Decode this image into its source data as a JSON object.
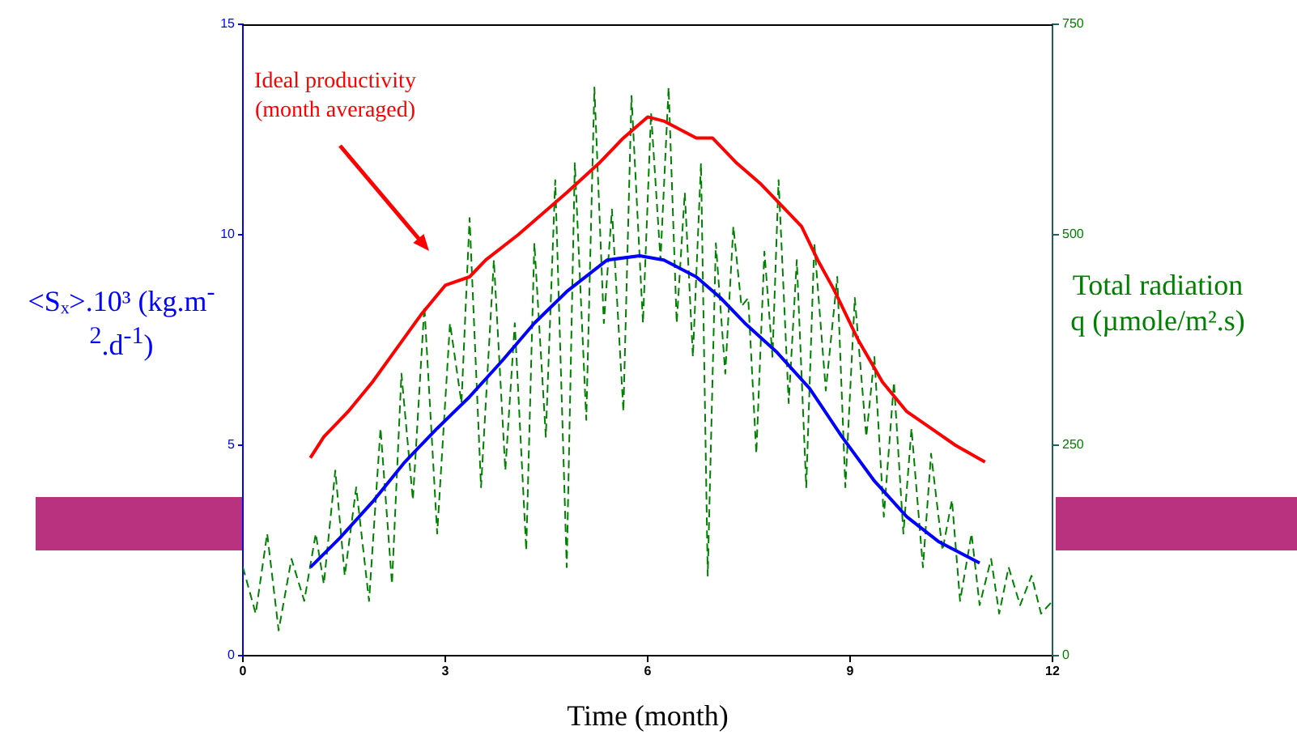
{
  "chart_data": {
    "type": "line",
    "xlabel": "Time (month)",
    "ylabel": "<Sₓ>.10³ (kg.m$^{-2}$.d$^{-1}$)",
    "y2label": "Total radiation q (µmole/m².s)",
    "xlim": [
      0,
      12
    ],
    "xticks": [
      0,
      3,
      6,
      9,
      12
    ],
    "ylim": [
      0,
      15
    ],
    "yticks": [
      0,
      5,
      10,
      15
    ],
    "y2lim": [
      0,
      750
    ],
    "y2ticks": [
      0,
      250,
      500,
      750
    ],
    "grid": false,
    "legend": false,
    "marker": "none",
    "annotations": [
      "Ideal productivity (month averaged)"
    ],
    "series": [
      {
        "color": "#ff0000",
        "line_style": "solid",
        "x": [
          1.0,
          1.2,
          1.56,
          1.92,
          2.28,
          2.64,
          3.0,
          3.36,
          3.6,
          4.08,
          4.44,
          4.8,
          5.28,
          5.64,
          6.0,
          6.24,
          6.72,
          6.96,
          7.32,
          7.68,
          7.92,
          8.28,
          8.52,
          8.76,
          9.12,
          9.48,
          9.84,
          10.2,
          10.56,
          11.0
        ],
        "values": [
          4.7,
          5.2,
          5.8,
          6.5,
          7.3,
          8.1,
          8.8,
          9.0,
          9.4,
          10.0,
          10.5,
          11.0,
          11.7,
          12.3,
          12.8,
          12.7,
          12.3,
          12.3,
          11.7,
          11.2,
          10.8,
          10.2,
          9.4,
          8.7,
          7.5,
          6.5,
          5.8,
          5.4,
          5.0,
          4.6
        ]
      },
      {
        "color": "#0000ff",
        "line_style": "solid",
        "x": [
          1.0,
          1.44,
          1.92,
          2.4,
          2.88,
          3.36,
          3.84,
          4.32,
          4.8,
          5.4,
          5.88,
          6.24,
          6.72,
          7.08,
          7.44,
          7.92,
          8.4,
          8.88,
          9.36,
          9.84,
          10.32,
          10.92
        ],
        "values": [
          2.1,
          2.8,
          3.65,
          4.6,
          5.4,
          6.15,
          7.0,
          7.9,
          8.65,
          9.4,
          9.5,
          9.4,
          9.0,
          8.5,
          7.9,
          7.2,
          6.35,
          5.2,
          4.15,
          3.3,
          2.7,
          2.2
        ]
      },
      {
        "color": "#008000",
        "line_style": "dashed",
        "axis": "y2",
        "x": [
          0,
          0.19,
          0.36,
          0.53,
          0.72,
          0.91,
          1.08,
          1.2,
          1.37,
          1.51,
          1.68,
          1.87,
          2.04,
          2.21,
          2.35,
          2.52,
          2.69,
          2.88,
          3.07,
          3.24,
          3.36,
          3.53,
          3.72,
          3.89,
          4.03,
          4.2,
          4.32,
          4.49,
          4.63,
          4.8,
          4.92,
          5.09,
          5.21,
          5.35,
          5.47,
          5.64,
          5.76,
          5.93,
          6.05,
          6.19,
          6.31,
          6.43,
          6.55,
          6.67,
          6.79,
          6.89,
          7.01,
          7.15,
          7.27,
          7.39,
          7.49,
          7.61,
          7.73,
          7.85,
          7.94,
          8.09,
          8.21,
          8.35,
          8.47,
          8.64,
          8.81,
          8.93,
          9.07,
          9.24,
          9.36,
          9.5,
          9.65,
          9.79,
          9.91,
          10.08,
          10.2,
          10.37,
          10.51,
          10.63,
          10.8,
          10.92,
          11.09,
          11.21,
          11.35,
          11.52,
          11.69,
          11.83,
          12.0
        ],
        "values": [
          105,
          50,
          145,
          30,
          115,
          65,
          145,
          85,
          220,
          95,
          200,
          65,
          270,
          85,
          335,
          185,
          415,
          145,
          395,
          300,
          520,
          200,
          470,
          220,
          395,
          125,
          490,
          260,
          565,
          105,
          585,
          280,
          675,
          395,
          530,
          290,
          665,
          395,
          645,
          470,
          675,
          395,
          550,
          355,
          585,
          95,
          490,
          335,
          510,
          415,
          425,
          240,
          480,
          355,
          565,
          300,
          470,
          200,
          490,
          315,
          450,
          200,
          425,
          260,
          355,
          165,
          325,
          145,
          270,
          105,
          240,
          125,
          185,
          65,
          145,
          60,
          115,
          50,
          105,
          60,
          95,
          50,
          65
        ]
      }
    ]
  }
}
